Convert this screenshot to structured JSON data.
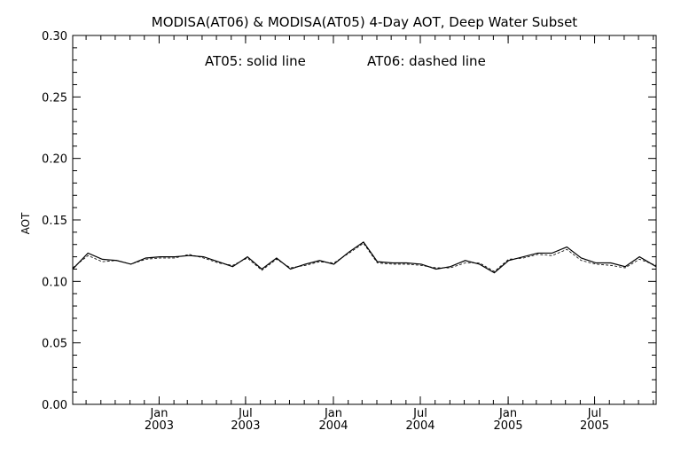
{
  "chart_data": {
    "type": "line",
    "title": "MODISA(AT06) & MODISA(AT05) 4-Day AOT, Deep Water Subset",
    "annotation_solid": "AT05: solid line",
    "annotation_dashed": "AT06: dashed line",
    "xlabel": "",
    "ylabel": "AOT",
    "xlim": [
      "2002-07-04",
      "2005-11-07"
    ],
    "ylim": [
      0.0,
      0.3
    ],
    "y_ticks": [
      "0.00",
      "0.05",
      "0.10",
      "0.15",
      "0.20",
      "0.25",
      "0.30"
    ],
    "x_ticks": [
      {
        "month": "Jan",
        "year": "2003",
        "date": "2003-01-01"
      },
      {
        "month": "Jul",
        "year": "2003",
        "date": "2003-07-01"
      },
      {
        "month": "Jan",
        "year": "2004",
        "date": "2004-01-01"
      },
      {
        "month": "Jul",
        "year": "2004",
        "date": "2004-07-01"
      },
      {
        "month": "Jan",
        "year": "2005",
        "date": "2005-01-01"
      },
      {
        "month": "Jul",
        "year": "2005",
        "date": "2005-07-01"
      }
    ],
    "grid": false,
    "series": [
      {
        "name": "AT05",
        "style": "solid",
        "x": [
          "2002-07-04",
          "2002-08-05",
          "2002-09-04",
          "2002-10-04",
          "2002-11-03",
          "2002-12-04",
          "2003-01-03",
          "2003-02-03",
          "2003-03-05",
          "2003-04-04",
          "2003-05-05",
          "2003-06-04",
          "2003-07-05",
          "2003-08-04",
          "2003-09-04",
          "2003-10-03",
          "2003-11-03",
          "2003-12-03",
          "2004-01-02",
          "2004-02-03",
          "2004-03-04",
          "2004-04-02",
          "2004-05-04",
          "2004-06-02",
          "2004-07-03",
          "2004-08-03",
          "2004-09-02",
          "2004-10-03",
          "2004-11-02",
          "2004-12-03",
          "2005-01-02",
          "2005-02-02",
          "2005-03-04",
          "2005-04-03",
          "2005-05-04",
          "2005-06-03",
          "2005-07-04",
          "2005-08-04",
          "2005-09-03",
          "2005-10-03",
          "2005-11-07"
        ],
        "values": [
          0.11,
          0.123,
          0.118,
          0.117,
          0.114,
          0.119,
          0.12,
          0.12,
          0.121,
          0.12,
          0.116,
          0.112,
          0.12,
          0.11,
          0.119,
          0.11,
          0.114,
          0.117,
          0.114,
          0.124,
          0.132,
          0.116,
          0.115,
          0.115,
          0.114,
          0.11,
          0.112,
          0.117,
          0.114,
          0.107,
          0.117,
          0.12,
          0.123,
          0.123,
          0.128,
          0.119,
          0.115,
          0.115,
          0.112,
          0.12,
          0.112
        ]
      },
      {
        "name": "AT06",
        "style": "dashed",
        "x": [
          "2002-07-04",
          "2002-08-05",
          "2002-09-04",
          "2002-10-04",
          "2002-11-03",
          "2002-12-04",
          "2003-01-03",
          "2003-02-03",
          "2003-03-05",
          "2003-04-04",
          "2003-05-05",
          "2003-06-04",
          "2003-07-05",
          "2003-08-04",
          "2003-09-04",
          "2003-10-03",
          "2003-11-03",
          "2003-12-03",
          "2004-01-02",
          "2004-02-03",
          "2004-03-04",
          "2004-04-02",
          "2004-05-04",
          "2004-06-02",
          "2004-07-03",
          "2004-08-03",
          "2004-09-02",
          "2004-10-03",
          "2004-11-02",
          "2004-12-03",
          "2005-01-02",
          "2005-02-02",
          "2005-03-04",
          "2005-04-03",
          "2005-05-04",
          "2005-06-03",
          "2005-07-04",
          "2005-08-04",
          "2005-09-03",
          "2005-10-03",
          "2005-11-07"
        ],
        "values": [
          0.111,
          0.121,
          0.116,
          0.117,
          0.114,
          0.118,
          0.119,
          0.119,
          0.122,
          0.119,
          0.115,
          0.113,
          0.119,
          0.109,
          0.118,
          0.111,
          0.113,
          0.116,
          0.115,
          0.123,
          0.131,
          0.115,
          0.114,
          0.114,
          0.113,
          0.111,
          0.111,
          0.115,
          0.115,
          0.108,
          0.118,
          0.119,
          0.122,
          0.121,
          0.126,
          0.117,
          0.114,
          0.113,
          0.111,
          0.118,
          0.113
        ]
      }
    ]
  }
}
